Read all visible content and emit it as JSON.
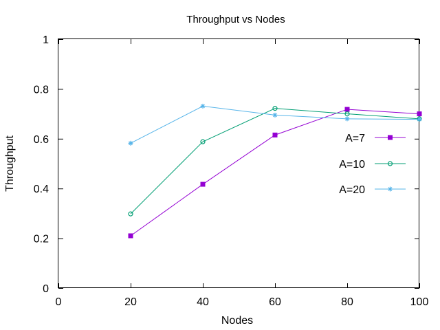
{
  "chart_data": {
    "type": "line",
    "title": "Throughput vs Nodes",
    "xlabel": "Nodes",
    "ylabel": "Throughput",
    "xlim": [
      0,
      100
    ],
    "ylim": [
      0,
      1
    ],
    "xticks": [
      0,
      20,
      40,
      60,
      80,
      100
    ],
    "yticks": [
      0,
      0.2,
      0.4,
      0.6,
      0.8,
      1
    ],
    "ytick_labels": [
      "0",
      "0.2",
      "0.4",
      "0.6",
      "0.8",
      "1"
    ],
    "xtick_labels": [
      "0",
      "20",
      "40",
      "60",
      "80",
      "100"
    ],
    "grid": false,
    "legend_position": "right",
    "x": [
      20,
      40,
      60,
      80,
      100
    ],
    "series": [
      {
        "name": "A=7",
        "values": [
          0.21,
          0.417,
          0.615,
          0.718,
          0.7
        ],
        "color": "#9400d3",
        "marker": "square-filled"
      },
      {
        "name": "A=10",
        "values": [
          0.298,
          0.588,
          0.722,
          0.7,
          0.68
        ],
        "color": "#009e73",
        "marker": "circle-open"
      },
      {
        "name": "A=20",
        "values": [
          0.582,
          0.731,
          0.695,
          0.68,
          0.678
        ],
        "color": "#56b4e9",
        "marker": "asterisk"
      }
    ]
  }
}
